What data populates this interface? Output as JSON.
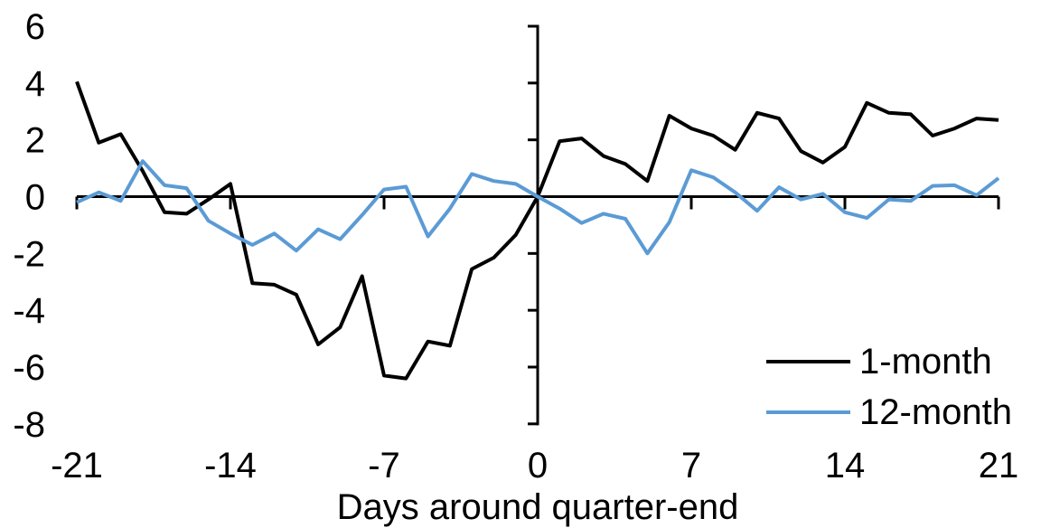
{
  "chart_data": {
    "type": "line",
    "title": "",
    "xlabel": "Days around quarter-end",
    "ylabel": "",
    "xlim": [
      -21,
      21
    ],
    "ylim": [
      -8,
      6
    ],
    "grid": false,
    "legend_position": "inside-bottom-right",
    "x_tick_labels": [
      "-21",
      "-14",
      "-7",
      "0",
      "7",
      "14",
      "21"
    ],
    "x_tick_values": [
      -21,
      -14,
      -7,
      0,
      7,
      14,
      21
    ],
    "x_tick_marks": [
      -21,
      -14,
      -7,
      7,
      14,
      21
    ],
    "y_tick_labels": [
      "6",
      "4",
      "2",
      "0",
      "-2",
      "-4",
      "-6",
      "-8"
    ],
    "y_tick_values": [
      6,
      4,
      2,
      0,
      -2,
      -4,
      -6,
      -8
    ],
    "x": [
      -21,
      -20,
      -19,
      -18,
      -17,
      -16,
      -15,
      -14,
      -13,
      -12,
      -11,
      -10,
      -9,
      -8,
      -7,
      -6,
      -5,
      -4,
      -3,
      -2,
      -1,
      0,
      1,
      2,
      3,
      4,
      5,
      6,
      7,
      8,
      9,
      10,
      11,
      12,
      13,
      14,
      15,
      16,
      17,
      18,
      19,
      20,
      21
    ],
    "series": [
      {
        "name": "1-month",
        "color": "#000000",
        "values": [
          4.05,
          1.9,
          2.2,
          0.9,
          -0.55,
          -0.6,
          -0.1,
          0.45,
          -3.05,
          -3.1,
          -3.45,
          -5.2,
          -4.6,
          -2.8,
          -6.3,
          -6.4,
          -5.1,
          -5.25,
          -2.55,
          -2.15,
          -1.35,
          0.0,
          1.95,
          2.05,
          1.43,
          1.15,
          0.55,
          2.85,
          2.4,
          2.15,
          1.65,
          2.95,
          2.75,
          1.6,
          1.2,
          1.75,
          3.3,
          2.95,
          2.9,
          2.15,
          2.4,
          2.75,
          2.7
        ]
      },
      {
        "name": "12-month",
        "color": "#5B9BD5",
        "values": [
          -0.2,
          0.15,
          -0.15,
          1.25,
          0.4,
          0.3,
          -0.85,
          -1.3,
          -1.7,
          -1.3,
          -1.9,
          -1.15,
          -1.5,
          -0.65,
          0.25,
          0.35,
          -1.4,
          -0.42,
          0.8,
          0.55,
          0.45,
          0.0,
          -0.42,
          -0.93,
          -0.6,
          -0.78,
          -2.0,
          -0.9,
          0.93,
          0.68,
          0.15,
          -0.5,
          0.33,
          -0.1,
          0.1,
          -0.55,
          -0.75,
          -0.1,
          -0.15,
          0.38,
          0.4,
          0.05,
          0.65
        ]
      }
    ]
  },
  "legend": {
    "items": [
      {
        "label": "1-month",
        "color": "#000000"
      },
      {
        "label": "12-month",
        "color": "#5B9BD5"
      }
    ]
  },
  "colors": {
    "axis": "#000000",
    "background": "#ffffff",
    "series_1_month": "#000000",
    "series_12_month": "#5B9BD5"
  }
}
